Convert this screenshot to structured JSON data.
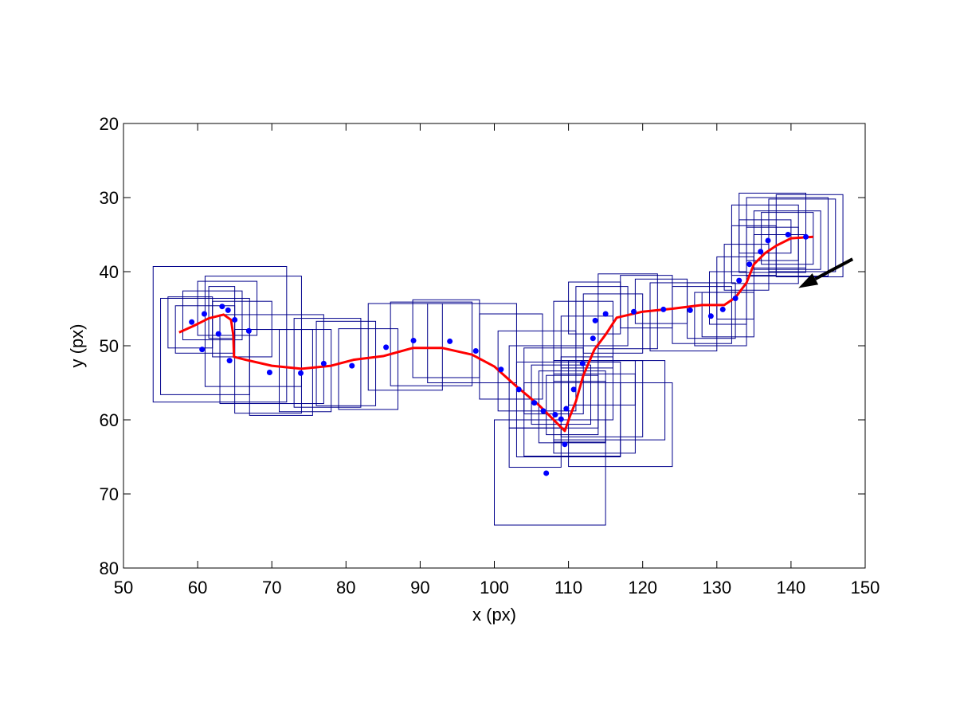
{
  "chart_data": {
    "type": "scatter",
    "xlabel": "x (px)",
    "ylabel": "y (px)",
    "xlim": [
      50,
      150
    ],
    "ylim": [
      20,
      80
    ],
    "y_reversed": true,
    "xticks": [
      50,
      60,
      70,
      80,
      90,
      100,
      110,
      120,
      130,
      140,
      150
    ],
    "yticks": [
      20,
      30,
      40,
      50,
      60,
      70,
      80
    ],
    "grid": false,
    "colors": {
      "points": "#0000ff",
      "boxes": "#00008b",
      "track": "#ff0000",
      "arrow": "#000000"
    },
    "points": [
      [
        59.2,
        46.8
      ],
      [
        60.6,
        50.5
      ],
      [
        60.9,
        45.7
      ],
      [
        62.8,
        48.4
      ],
      [
        63.3,
        44.7
      ],
      [
        64.1,
        45.2
      ],
      [
        64.3,
        52.0
      ],
      [
        65.0,
        46.5
      ],
      [
        66.9,
        48.0
      ],
      [
        69.7,
        53.6
      ],
      [
        73.9,
        53.7
      ],
      [
        77.0,
        52.4
      ],
      [
        80.8,
        52.7
      ],
      [
        85.4,
        50.2
      ],
      [
        89.1,
        49.3
      ],
      [
        94.0,
        49.4
      ],
      [
        97.5,
        50.7
      ],
      [
        100.9,
        53.2
      ],
      [
        103.3,
        55.9
      ],
      [
        105.4,
        57.7
      ],
      [
        106.6,
        58.8
      ],
      [
        107.0,
        67.2
      ],
      [
        108.2,
        59.3
      ],
      [
        109.0,
        59.9
      ],
      [
        109.5,
        63.3
      ],
      [
        109.7,
        58.5
      ],
      [
        110.7,
        55.9
      ],
      [
        111.9,
        52.4
      ],
      [
        113.3,
        49.0
      ],
      [
        113.6,
        46.6
      ],
      [
        115.0,
        45.7
      ],
      [
        118.8,
        45.4
      ],
      [
        122.8,
        45.1
      ],
      [
        126.4,
        45.2
      ],
      [
        129.2,
        46.0
      ],
      [
        130.8,
        45.1
      ],
      [
        132.5,
        43.6
      ],
      [
        133.0,
        41.2
      ],
      [
        134.4,
        39.0
      ],
      [
        135.9,
        37.3
      ],
      [
        136.9,
        35.8
      ],
      [
        139.6,
        35.0
      ],
      [
        142.0,
        35.3
      ]
    ],
    "track": [
      [
        57.5,
        48.2
      ],
      [
        59.5,
        47.3
      ],
      [
        61.5,
        46.3
      ],
      [
        63.5,
        45.8
      ],
      [
        64.5,
        46.5
      ],
      [
        64.8,
        48.5
      ],
      [
        64.9,
        51.5
      ],
      [
        66.5,
        51.9
      ],
      [
        70.0,
        52.7
      ],
      [
        74.0,
        53.1
      ],
      [
        78.0,
        52.7
      ],
      [
        81.0,
        51.9
      ],
      [
        85.0,
        51.4
      ],
      [
        89.0,
        50.3
      ],
      [
        93.0,
        50.3
      ],
      [
        97.0,
        51.2
      ],
      [
        100.0,
        52.8
      ],
      [
        103.0,
        55.5
      ],
      [
        106.0,
        58.0
      ],
      [
        109.5,
        61.5
      ],
      [
        110.2,
        59.5
      ],
      [
        111.0,
        57.5
      ],
      [
        112.0,
        54.0
      ],
      [
        113.5,
        50.5
      ],
      [
        115.0,
        48.5
      ],
      [
        116.5,
        46.2
      ],
      [
        120.0,
        45.4
      ],
      [
        124.0,
        45.0
      ],
      [
        128.0,
        44.5
      ],
      [
        131.0,
        44.5
      ],
      [
        132.5,
        43.5
      ],
      [
        134.0,
        41.5
      ],
      [
        135.0,
        39.0
      ],
      [
        136.5,
        37.5
      ],
      [
        138.0,
        36.5
      ],
      [
        140.0,
        35.5
      ],
      [
        143.0,
        35.3
      ]
    ],
    "boxes": [
      [
        54.0,
        39.3,
        72.0,
        57.6
      ],
      [
        55.0,
        43.6,
        67.0,
        56.6
      ],
      [
        56.0,
        43.4,
        62.0,
        50.3
      ],
      [
        57.0,
        44.6,
        65.0,
        51.0
      ],
      [
        58.0,
        42.6,
        66.0,
        49.2
      ],
      [
        60.0,
        41.3,
        68.0,
        48.6
      ],
      [
        61.0,
        40.6,
        74.0,
        55.5
      ],
      [
        61.5,
        42.0,
        65.0,
        49.0
      ],
      [
        62.0,
        44.0,
        70.0,
        51.5
      ],
      [
        63.0,
        45.8,
        77.0,
        57.8
      ],
      [
        65.0,
        47.8,
        74.0,
        59.1
      ],
      [
        67.0,
        47.8,
        75.5,
        59.4
      ],
      [
        71.0,
        47.8,
        78.0,
        58.9
      ],
      [
        73.0,
        46.3,
        82.0,
        58.3
      ],
      [
        76.0,
        46.7,
        84.0,
        58.1
      ],
      [
        79.0,
        47.7,
        87.0,
        58.6
      ],
      [
        83.0,
        44.3,
        93.0,
        56.0
      ],
      [
        86.0,
        44.1,
        97.0,
        55.4
      ],
      [
        89.0,
        43.8,
        98.0,
        54.3
      ],
      [
        91.0,
        44.3,
        103.0,
        55.0
      ],
      [
        98.0,
        45.7,
        106.5,
        57.2
      ],
      [
        100.5,
        48.0,
        111.0,
        58.8
      ],
      [
        102.0,
        50.0,
        114.0,
        61.1
      ],
      [
        103.0,
        52.2,
        117.0,
        65.0
      ],
      [
        104.0,
        55.0,
        117.0,
        64.9
      ],
      [
        104.0,
        50.3,
        112.0,
        59.2
      ],
      [
        105.0,
        52.6,
        113.0,
        60.6
      ],
      [
        106.0,
        53.4,
        115.0,
        63.1
      ],
      [
        107.0,
        54.0,
        114.0,
        62.0
      ],
      [
        100.0,
        60.0,
        115.0,
        74.2
      ],
      [
        102.0,
        61.1,
        109.0,
        66.4
      ],
      [
        108.0,
        52.0,
        123.0,
        62.7
      ],
      [
        108.0,
        53.8,
        119.0,
        64.5
      ],
      [
        108.0,
        54.8,
        115.0,
        63.0
      ],
      [
        110.0,
        52.0,
        119.0,
        58.0
      ],
      [
        110.0,
        55.0,
        124.0,
        66.3
      ],
      [
        109.0,
        52.0,
        120.0,
        62.3
      ],
      [
        109.0,
        51.5,
        116.0,
        60.0
      ],
      [
        108.0,
        44.0,
        116.0,
        52.0
      ],
      [
        109.0,
        46.0,
        116.0,
        53.0
      ],
      [
        110.0,
        41.4,
        117.0,
        48.4
      ],
      [
        111.0,
        42.0,
        118.0,
        50.0
      ],
      [
        112.0,
        43.0,
        120.0,
        51.0
      ],
      [
        114.0,
        40.3,
        122.0,
        50.4
      ],
      [
        117.0,
        40.5,
        124.0,
        47.6
      ],
      [
        119.0,
        41.0,
        126.0,
        47.0
      ],
      [
        121.0,
        41.5,
        130.0,
        50.7
      ],
      [
        124.0,
        42.0,
        132.0,
        49.7
      ],
      [
        126.0,
        41.5,
        132.5,
        49.0
      ],
      [
        127.0,
        42.8,
        134.0,
        50.0
      ],
      [
        128.0,
        42.8,
        135.0,
        48.8
      ],
      [
        129.0,
        40.0,
        134.0,
        47.1
      ],
      [
        130.0,
        38.0,
        135.0,
        46.4
      ],
      [
        131.0,
        36.3,
        137.0,
        42.5
      ],
      [
        132.0,
        33.8,
        138.0,
        40.5
      ],
      [
        132.0,
        31.0,
        141.0,
        41.6
      ],
      [
        133.0,
        29.4,
        142.0,
        40.1
      ],
      [
        134.0,
        30.0,
        145.0,
        40.6
      ],
      [
        135.0,
        31.8,
        144.0,
        39.7
      ],
      [
        137.0,
        30.2,
        146.0,
        40.0
      ],
      [
        138.0,
        29.6,
        147.0,
        40.7
      ],
      [
        136.0,
        32.0,
        143.0,
        39.0
      ],
      [
        134.0,
        34.0,
        141.0,
        38.5
      ],
      [
        135.0,
        35.0,
        142.0,
        39.5
      ],
      [
        133.0,
        33.0,
        140.0,
        37.5
      ]
    ],
    "arrow": {
      "from": [
        148.3,
        38.3
      ],
      "to": [
        141.0,
        42.2
      ]
    }
  }
}
